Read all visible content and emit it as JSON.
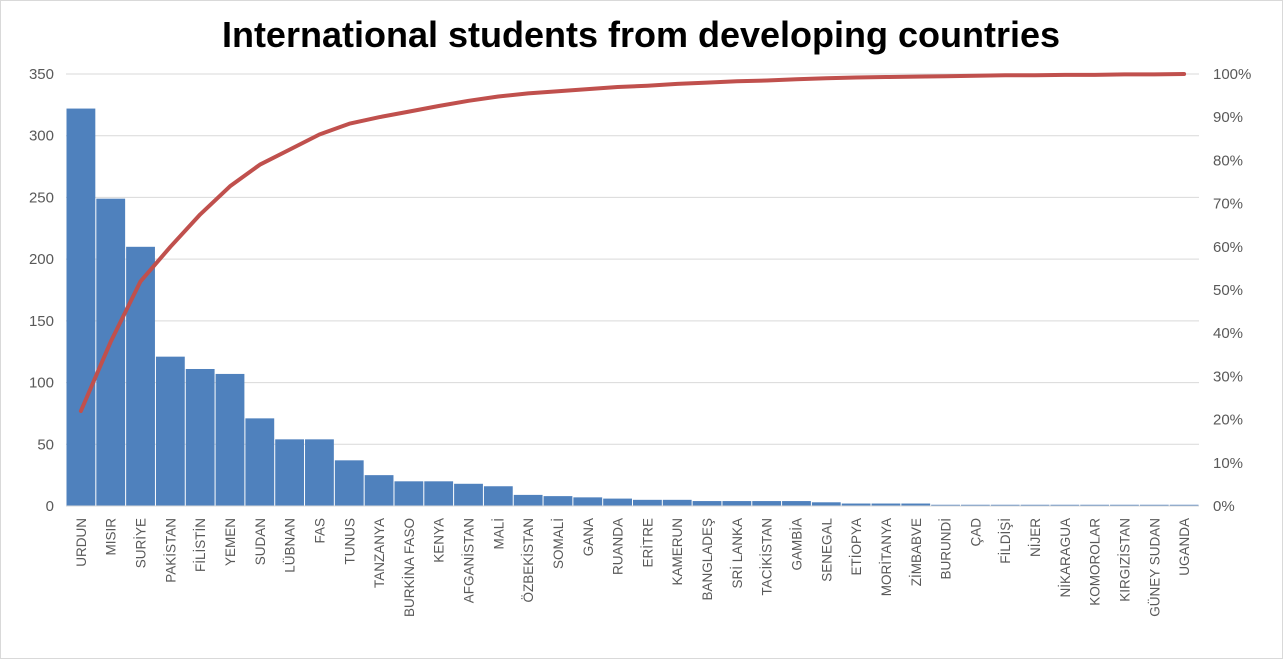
{
  "chart_data": {
    "type": "bar",
    "title": "International students from developing countries",
    "categories": [
      "URDUN",
      "MISIR",
      "SURİYE",
      "PAKİSTAN",
      "FİLİSTİN",
      "YEMEN",
      "SUDAN",
      "LÜBNAN",
      "FAS",
      "TUNUS",
      "TANZANYA",
      "BURKİNA FASO",
      "KENYA",
      "AFGANİSTAN",
      "MALİ",
      "ÖZBEKİSTAN",
      "SOMALİ",
      "GANA",
      "RUANDA",
      "ERİTRE",
      "KAMERUN",
      "BANGLADEŞ",
      "SRİ LANKA",
      "TACİKİSTAN",
      "GAMBİA",
      "SENEGAL",
      "ETİOPYA",
      "MORİTANYA",
      "ZİMBABVE",
      "BURUNDİ",
      "ÇAD",
      "FİLDİŞİ",
      "NİJER",
      "NİKARAGUA",
      "KOMOROLAR",
      "KIRGIZİSTAN",
      "GÜNEY SUDAN",
      "UGANDA"
    ],
    "series": [
      {
        "type": "bar",
        "axis": "left",
        "color": "#4f81bd",
        "values": [
          322,
          249,
          210,
          121,
          111,
          107,
          71,
          54,
          54,
          37,
          25,
          20,
          20,
          18,
          16,
          9,
          8,
          7,
          6,
          5,
          5,
          4,
          4,
          4,
          4,
          3,
          2,
          2,
          2,
          1,
          1,
          1,
          1,
          1,
          1,
          1,
          1,
          1
        ]
      },
      {
        "type": "line",
        "axis": "right",
        "color": "#c0504d",
        "values": [
          0.22,
          0.38,
          0.52,
          0.6,
          0.675,
          0.74,
          0.79,
          0.825,
          0.86,
          0.885,
          0.9,
          0.913,
          0.926,
          0.938,
          0.948,
          0.955,
          0.96,
          0.965,
          0.97,
          0.973,
          0.977,
          0.98,
          0.983,
          0.985,
          0.988,
          0.99,
          0.992,
          0.993,
          0.994,
          0.995,
          0.996,
          0.997,
          0.997,
          0.998,
          0.998,
          0.999,
          0.999,
          1.0
        ]
      }
    ],
    "ylim": [
      0,
      350
    ],
    "yticks": [
      0,
      50,
      100,
      150,
      200,
      250,
      300,
      350
    ],
    "y2lim": [
      0,
      1
    ],
    "y2ticks": [
      "0%",
      "10%",
      "20%",
      "30%",
      "40%",
      "50%",
      "60%",
      "70%",
      "80%",
      "90%",
      "100%"
    ],
    "grid": true,
    "legend": "none"
  }
}
